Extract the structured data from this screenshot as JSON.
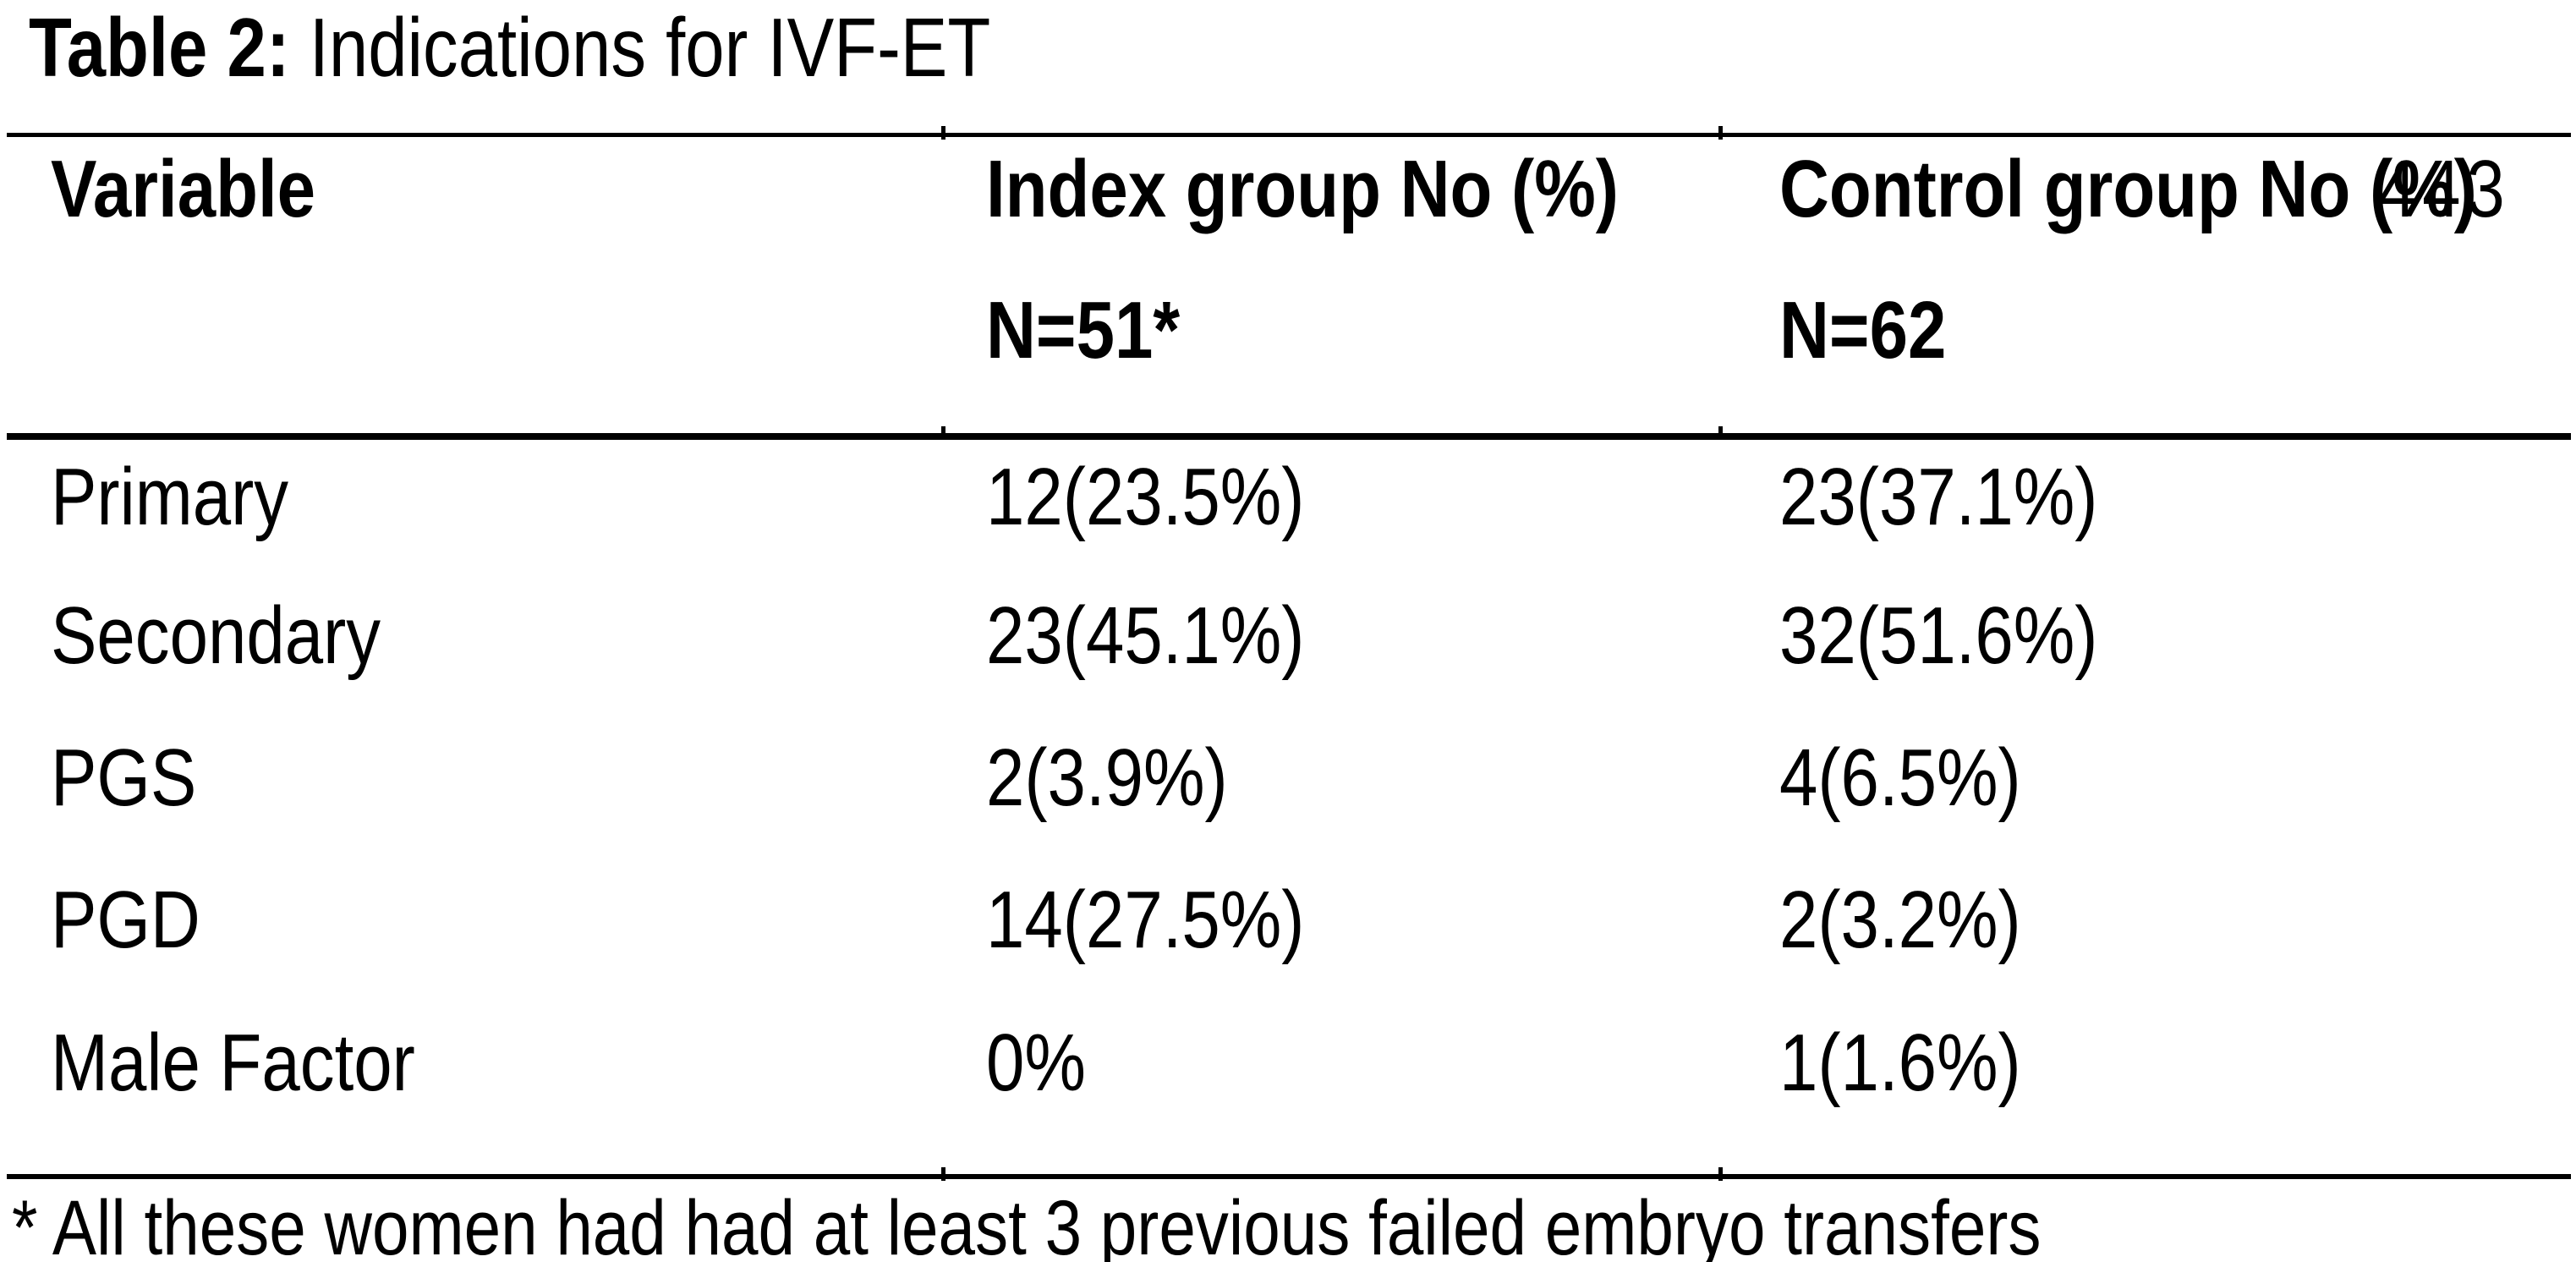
{
  "title": {
    "label": "Table 2:",
    "text": " Indications for IVF-ET"
  },
  "page_number": "443",
  "table": {
    "columns": [
      {
        "label": "Variable",
        "sub": ""
      },
      {
        "label": "Index group No (%)",
        "sub": "N=51*"
      },
      {
        "label": "Control group No (%)",
        "sub": "N=62"
      }
    ],
    "rows": [
      {
        "variable": "Primary",
        "index_group": "12(23.5%)",
        "control_group": "23(37.1%)"
      },
      {
        "variable": "Secondary",
        "index_group": "23(45.1%)",
        "control_group": "32(51.6%)"
      },
      {
        "variable": "PGS",
        "index_group": "2(3.9%)",
        "control_group": "4(6.5%)"
      },
      {
        "variable": "PGD",
        "index_group": "14(27.5%)",
        "control_group": "2(3.2%)"
      },
      {
        "variable": "Male Factor",
        "index_group": "0%",
        "control_group": "1(1.6%)"
      }
    ],
    "footnote": "* All these women had had at least 3 previous failed embryo transfers"
  },
  "colors": {
    "text": "#000000",
    "background": "#ffffff",
    "rule": "#000000"
  }
}
